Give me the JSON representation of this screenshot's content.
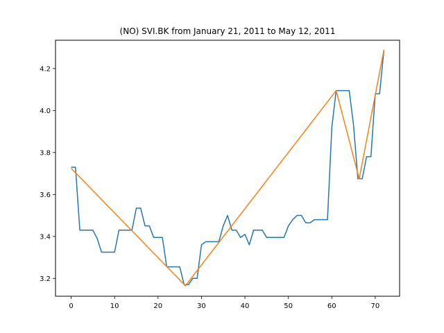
{
  "chart_data": {
    "type": "line",
    "title": "(NO) SVI.BK from January 21, 2011 to May 12, 2011",
    "xlabel": "",
    "ylabel": "",
    "xlim": [
      -3.6,
      75.6
    ],
    "ylim": [
      3.115,
      4.335
    ],
    "x_ticks": [
      0,
      10,
      20,
      30,
      40,
      50,
      60,
      70
    ],
    "y_ticks": [
      3.2,
      3.4,
      3.6,
      3.8,
      4.0,
      4.2
    ],
    "y_tick_labels": [
      "3.2",
      "3.4",
      "3.6",
      "3.8",
      "4.0",
      "4.2"
    ],
    "grid": false,
    "series": [
      {
        "color": "#1f77b4",
        "x": [
          0,
          1,
          2,
          3,
          4,
          5,
          6,
          7,
          8,
          9,
          10,
          11,
          12,
          13,
          14,
          15,
          16,
          17,
          18,
          19,
          20,
          21,
          22,
          23,
          24,
          25,
          26,
          27,
          28,
          29,
          30,
          31,
          32,
          33,
          34,
          35,
          36,
          37,
          38,
          39,
          40,
          41,
          42,
          43,
          44,
          45,
          46,
          47,
          48,
          49,
          50,
          51,
          52,
          53,
          54,
          55,
          56,
          57,
          58,
          59,
          60,
          61,
          62,
          63,
          64,
          65,
          66,
          67,
          68,
          69,
          70,
          71,
          72
        ],
        "y": [
          3.73,
          3.73,
          3.43,
          3.43,
          3.43,
          3.43,
          3.39,
          3.325,
          3.325,
          3.325,
          3.325,
          3.43,
          3.43,
          3.43,
          3.43,
          3.535,
          3.535,
          3.45,
          3.45,
          3.395,
          3.395,
          3.395,
          3.255,
          3.255,
          3.255,
          3.255,
          3.17,
          3.17,
          3.2,
          3.2,
          3.36,
          3.375,
          3.375,
          3.375,
          3.375,
          3.45,
          3.5,
          3.43,
          3.43,
          3.395,
          3.41,
          3.36,
          3.43,
          3.43,
          3.43,
          3.395,
          3.395,
          3.395,
          3.395,
          3.395,
          3.45,
          3.48,
          3.5,
          3.5,
          3.465,
          3.465,
          3.48,
          3.48,
          3.48,
          3.48,
          3.92,
          4.095,
          4.095,
          4.095,
          4.095,
          3.93,
          3.675,
          3.675,
          3.78,
          3.78,
          4.08,
          4.08,
          4.29
        ]
      },
      {
        "color": "#ff7f0e",
        "x": [
          0,
          26.3,
          61,
          66.3,
          72
        ],
        "y": [
          3.725,
          3.165,
          4.095,
          3.675,
          4.29
        ]
      }
    ]
  }
}
